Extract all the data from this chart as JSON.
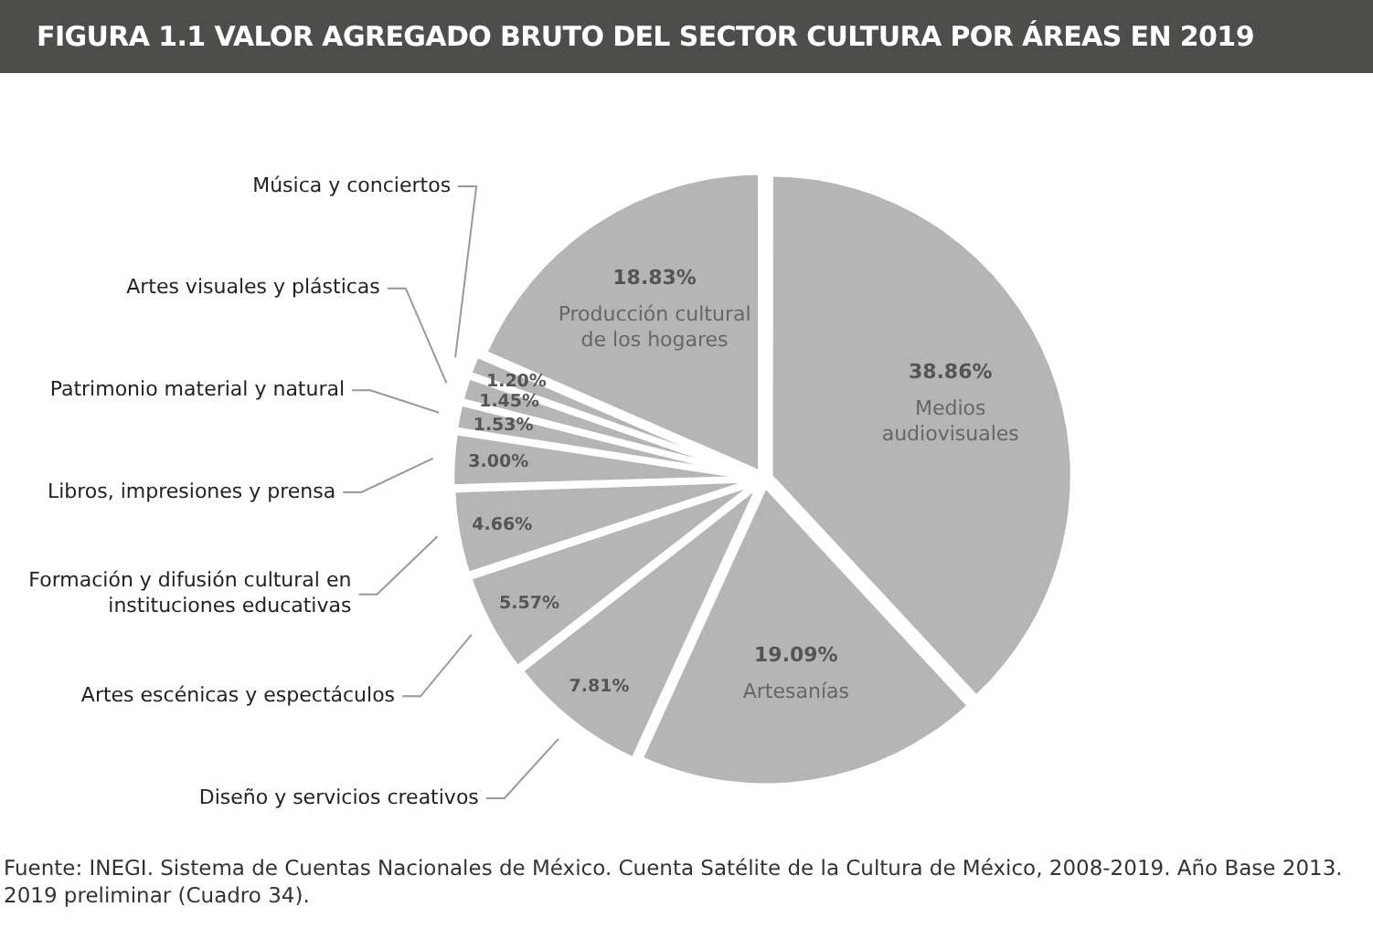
{
  "chart_data": {
    "type": "pie",
    "title": "FIGURA 1.1 VALOR AGREGADO BRUTO DEL SECTOR CULTURA POR ÁREAS EN 2019",
    "categories": [
      "Medios audiovisuales",
      "Artesanías",
      "Diseño y servicios creativos",
      "Artes escénicas y espectáculos",
      "Formación y difusión cultural en instituciones educativas",
      "Libros, impresiones y prensa",
      "Patrimonio material y natural",
      "Artes visuales y plásticas",
      "Música y conciertos",
      "Producción cultural de los hogares"
    ],
    "values": [
      38.86,
      19.09,
      7.81,
      5.57,
      4.66,
      3.0,
      1.53,
      1.45,
      1.2,
      18.83
    ],
    "value_labels": [
      "38.86%",
      "19.09%",
      "7.81%",
      "5.57%",
      "4.66%",
      "3.00%",
      "1.53%",
      "1.45%",
      "1.20%",
      "18.83%"
    ],
    "colors": [
      "#b5b5b5",
      "#b5b5b5",
      "#b5b5b5",
      "#b5b5b5",
      "#b5b5b5",
      "#b5b5b5",
      "#b5b5b5",
      "#b5b5b5",
      "#b5b5b5",
      "#b5b5b5"
    ],
    "legend": false,
    "annotations": [
      "Fuente: INEGI. Sistema de Cuentas Nacionales de México. Cuenta Satélite de la Cultura de México, 2008-2019. Año Base 2013. 2019 preliminar (Cuadro 34)."
    ]
  }
}
